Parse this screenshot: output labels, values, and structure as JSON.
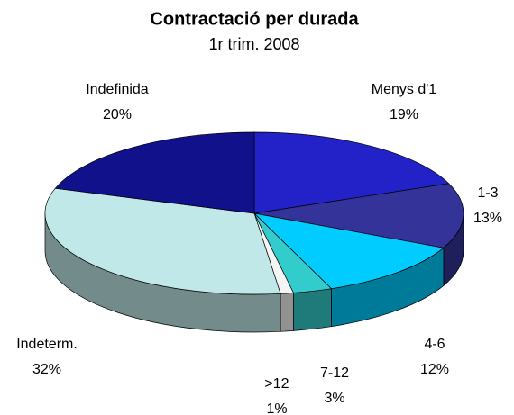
{
  "chart_data": {
    "type": "pie",
    "title": "Contractació per durada",
    "subtitle": "1r trim. 2008",
    "categories": [
      "Menys d'1",
      "1-3",
      "4-6",
      "7-12",
      ">12",
      "Indeterm.",
      "Indefinida"
    ],
    "values": [
      19,
      13,
      12,
      3,
      1,
      32,
      20
    ],
    "value_labels": [
      "19%",
      "13%",
      "12%",
      "3%",
      "1%",
      "32%",
      "20%"
    ],
    "colors": [
      "#2222c8",
      "#333399",
      "#00ccff",
      "#33cccc",
      "#f4f4f4",
      "#c0e8e8",
      "#11118c"
    ]
  }
}
